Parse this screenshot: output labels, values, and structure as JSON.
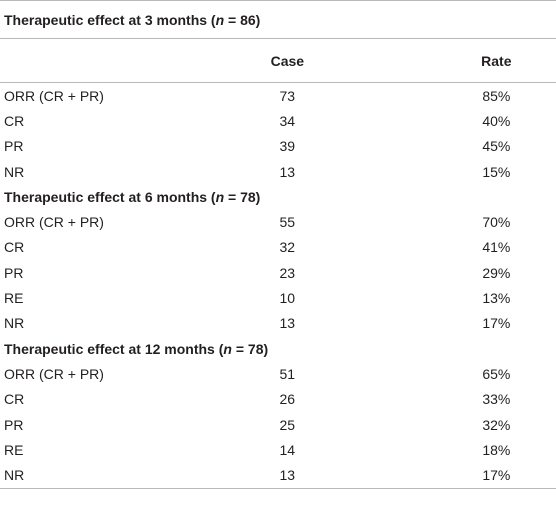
{
  "table": {
    "columns": [
      "Case",
      "Rate"
    ],
    "sections": [
      {
        "heading": [
          "Therapeutic effect at 3 months (",
          "n",
          " = 86)"
        ],
        "rows": [
          [
            "ORR (CR + PR)",
            "73",
            "85%"
          ],
          [
            "CR",
            "34",
            "40%"
          ],
          [
            "PR",
            "39",
            "45%"
          ],
          [
            "NR",
            "13",
            "15%"
          ]
        ]
      },
      {
        "heading": [
          "Therapeutic effect at 6 months (",
          "n",
          " = 78)"
        ],
        "rows": [
          [
            "ORR (CR + PR)",
            "55",
            "70%"
          ],
          [
            "CR",
            "32",
            "41%"
          ],
          [
            "PR",
            "23",
            "29%"
          ],
          [
            "RE",
            "10",
            "13%"
          ],
          [
            "NR",
            "13",
            "17%"
          ]
        ]
      },
      {
        "heading": [
          "Therapeutic effect at 12 months (",
          "n",
          " = 78)"
        ],
        "rows": [
          [
            "ORR (CR + PR)",
            "51",
            "65%"
          ],
          [
            "CR",
            "26",
            "33%"
          ],
          [
            "PR",
            "25",
            "32%"
          ],
          [
            "RE",
            "14",
            "18%"
          ],
          [
            "NR",
            "13",
            "17%"
          ]
        ]
      }
    ]
  }
}
